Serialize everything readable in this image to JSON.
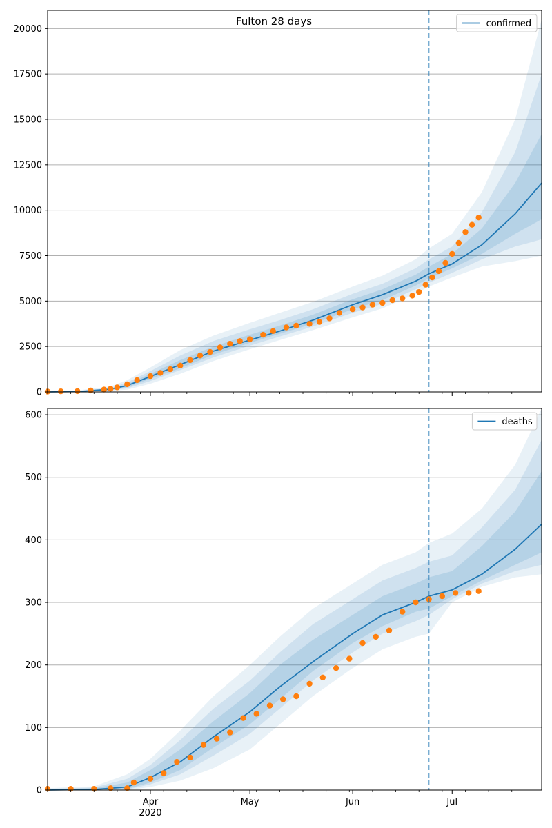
{
  "figure": {
    "title": "Fulton 28 days"
  },
  "colors": {
    "model_line": "#1f77b4",
    "observed_points": "#ff7f0e",
    "band": "#1f77b4",
    "forecast_marker": "#1f77b4",
    "grid": "#b0b0b0"
  },
  "chart_data": [
    {
      "type": "line",
      "name": "confirmed-panel",
      "x_axis": {
        "type": "date",
        "range": [
          "2020-03-01",
          "2020-07-28"
        ],
        "major_ticks": [
          {
            "date": "2020-04-01",
            "label": "Apr",
            "sublabel": "2020"
          },
          {
            "date": "2020-05-01",
            "label": "May",
            "sublabel": ""
          },
          {
            "date": "2020-06-01",
            "label": "Jun",
            "sublabel": ""
          },
          {
            "date": "2020-07-01",
            "label": "Jul",
            "sublabel": ""
          }
        ],
        "show_labels": false
      },
      "y_axis": {
        "range": [
          0,
          21000
        ],
        "ticks": [
          0,
          2500,
          5000,
          7500,
          10000,
          12500,
          15000,
          17500,
          20000
        ],
        "grid": true
      },
      "forecast_start": "2020-06-24",
      "legend": {
        "label": "confirmed",
        "placement": "top-right"
      },
      "model_median": {
        "x": [
          "2020-03-01",
          "2020-03-10",
          "2020-03-20",
          "2020-03-25",
          "2020-04-01",
          "2020-04-10",
          "2020-04-20",
          "2020-05-01",
          "2020-05-10",
          "2020-05-20",
          "2020-06-01",
          "2020-06-10",
          "2020-06-20",
          "2020-06-24",
          "2020-07-01",
          "2020-07-10",
          "2020-07-20",
          "2020-07-28"
        ],
        "y": [
          0,
          20,
          150,
          350,
          850,
          1500,
          2250,
          2850,
          3350,
          3950,
          4800,
          5350,
          6100,
          6500,
          7050,
          8100,
          9800,
          11500
        ]
      },
      "bands": [
        {
          "level": "outer",
          "upper": [
            40,
            80,
            300,
            650,
            1350,
            2300,
            3100,
            3800,
            4350,
            4950,
            5800,
            6400,
            7300,
            7900,
            8700,
            11000,
            15000,
            20500
          ],
          "lower": [
            0,
            5,
            60,
            120,
            450,
            1000,
            1700,
            2350,
            2850,
            3400,
            4100,
            4600,
            5400,
            5800,
            6300,
            6900,
            7200,
            7500
          ]
        },
        {
          "level": "mid",
          "upper": [
            25,
            50,
            220,
            520,
            1150,
            2000,
            2800,
            3450,
            3950,
            4550,
            5400,
            5950,
            6800,
            7300,
            8000,
            9900,
            13200,
            17500
          ],
          "lower": [
            0,
            8,
            90,
            200,
            600,
            1200,
            1900,
            2550,
            3050,
            3600,
            4350,
            4850,
            5650,
            6000,
            6550,
            7300,
            8000,
            8400
          ]
        },
        {
          "level": "inner",
          "upper": [
            18,
            35,
            180,
            430,
            1000,
            1750,
            2500,
            3150,
            3650,
            4250,
            5100,
            5650,
            6450,
            6900,
            7600,
            9000,
            11500,
            14200
          ],
          "lower": [
            0,
            12,
            115,
            260,
            720,
            1300,
            2050,
            2700,
            3200,
            3750,
            4550,
            5050,
            5850,
            6250,
            6800,
            7600,
            8700,
            9500
          ]
        }
      ],
      "observed": {
        "x": [
          "2020-03-01",
          "2020-03-05",
          "2020-03-10",
          "2020-03-14",
          "2020-03-18",
          "2020-03-20",
          "2020-03-22",
          "2020-03-25",
          "2020-03-28",
          "2020-04-01",
          "2020-04-04",
          "2020-04-07",
          "2020-04-10",
          "2020-04-13",
          "2020-04-16",
          "2020-04-19",
          "2020-04-22",
          "2020-04-25",
          "2020-04-28",
          "2020-05-01",
          "2020-05-05",
          "2020-05-08",
          "2020-05-12",
          "2020-05-15",
          "2020-05-19",
          "2020-05-22",
          "2020-05-25",
          "2020-05-28",
          "2020-06-01",
          "2020-06-04",
          "2020-06-07",
          "2020-06-10",
          "2020-06-13",
          "2020-06-16",
          "2020-06-19",
          "2020-06-21",
          "2020-06-23",
          "2020-06-25",
          "2020-06-27",
          "2020-06-29",
          "2020-07-01",
          "2020-07-03",
          "2020-07-05",
          "2020-07-07",
          "2020-07-09"
        ],
        "y": [
          20,
          30,
          40,
          80,
          130,
          180,
          250,
          420,
          650,
          870,
          1050,
          1250,
          1450,
          1750,
          2000,
          2200,
          2450,
          2650,
          2800,
          2900,
          3150,
          3350,
          3550,
          3650,
          3750,
          3850,
          4050,
          4350,
          4550,
          4650,
          4800,
          4900,
          5050,
          5150,
          5300,
          5500,
          5900,
          6300,
          6650,
          7100,
          7600,
          8200,
          8800,
          9200,
          9600
        ]
      }
    },
    {
      "type": "line",
      "name": "deaths-panel",
      "x_axis": {
        "type": "date",
        "range": [
          "2020-03-01",
          "2020-07-28"
        ],
        "major_ticks": [
          {
            "date": "2020-04-01",
            "label": "Apr",
            "sublabel": "2020"
          },
          {
            "date": "2020-05-01",
            "label": "May",
            "sublabel": ""
          },
          {
            "date": "2020-06-01",
            "label": "Jun",
            "sublabel": ""
          },
          {
            "date": "2020-07-01",
            "label": "Jul",
            "sublabel": ""
          }
        ],
        "show_labels": true
      },
      "y_axis": {
        "range": [
          0,
          610
        ],
        "ticks": [
          0,
          100,
          200,
          300,
          400,
          500,
          600
        ],
        "grid": true
      },
      "forecast_start": "2020-06-24",
      "legend": {
        "label": "deaths",
        "placement": "top-right"
      },
      "model_median": {
        "x": [
          "2020-03-01",
          "2020-03-15",
          "2020-03-25",
          "2020-04-01",
          "2020-04-10",
          "2020-04-20",
          "2020-05-01",
          "2020-05-10",
          "2020-05-20",
          "2020-06-01",
          "2020-06-10",
          "2020-06-20",
          "2020-06-24",
          "2020-07-01",
          "2020-07-10",
          "2020-07-20",
          "2020-07-28"
        ],
        "y": [
          0,
          1,
          5,
          20,
          45,
          85,
          125,
          165,
          205,
          250,
          280,
          300,
          310,
          320,
          345,
          385,
          425
        ]
      },
      "bands": [
        {
          "level": "outer",
          "upper": [
            3,
            6,
            25,
            50,
            95,
            150,
            200,
            245,
            290,
            330,
            360,
            380,
            395,
            410,
            450,
            520,
            610
          ],
          "lower": [
            0,
            0,
            0,
            5,
            15,
            35,
            65,
            105,
            150,
            195,
            225,
            245,
            250,
            300,
            325,
            340,
            345
          ]
        },
        {
          "level": "mid",
          "upper": [
            2,
            4,
            18,
            40,
            80,
            130,
            175,
            220,
            265,
            305,
            335,
            355,
            365,
            375,
            420,
            480,
            560
          ],
          "lower": [
            0,
            0,
            1,
            9,
            25,
            55,
            90,
            130,
            175,
            220,
            250,
            270,
            280,
            305,
            330,
            350,
            360
          ]
        },
        {
          "level": "inner",
          "upper": [
            1,
            3,
            12,
            32,
            65,
            110,
            155,
            200,
            240,
            280,
            310,
            330,
            340,
            350,
            390,
            445,
            510
          ],
          "lower": [
            0,
            0,
            2,
            12,
            32,
            68,
            105,
            145,
            190,
            235,
            262,
            285,
            290,
            310,
            335,
            360,
            380
          ]
        }
      ],
      "observed": {
        "x": [
          "2020-03-01",
          "2020-03-08",
          "2020-03-15",
          "2020-03-20",
          "2020-03-25",
          "2020-03-27",
          "2020-04-01",
          "2020-04-05",
          "2020-04-09",
          "2020-04-13",
          "2020-04-17",
          "2020-04-21",
          "2020-04-25",
          "2020-04-29",
          "2020-05-03",
          "2020-05-07",
          "2020-05-11",
          "2020-05-15",
          "2020-05-19",
          "2020-05-23",
          "2020-05-27",
          "2020-05-31",
          "2020-06-04",
          "2020-06-08",
          "2020-06-12",
          "2020-06-16",
          "2020-06-20",
          "2020-06-24",
          "2020-06-28",
          "2020-07-02",
          "2020-07-06",
          "2020-07-09"
        ],
        "y": [
          2,
          2,
          2,
          3,
          3,
          12,
          18,
          27,
          45,
          52,
          72,
          82,
          92,
          115,
          122,
          135,
          145,
          150,
          170,
          180,
          195,
          210,
          235,
          245,
          255,
          285,
          300,
          305,
          310,
          315,
          315,
          318
        ]
      }
    }
  ]
}
